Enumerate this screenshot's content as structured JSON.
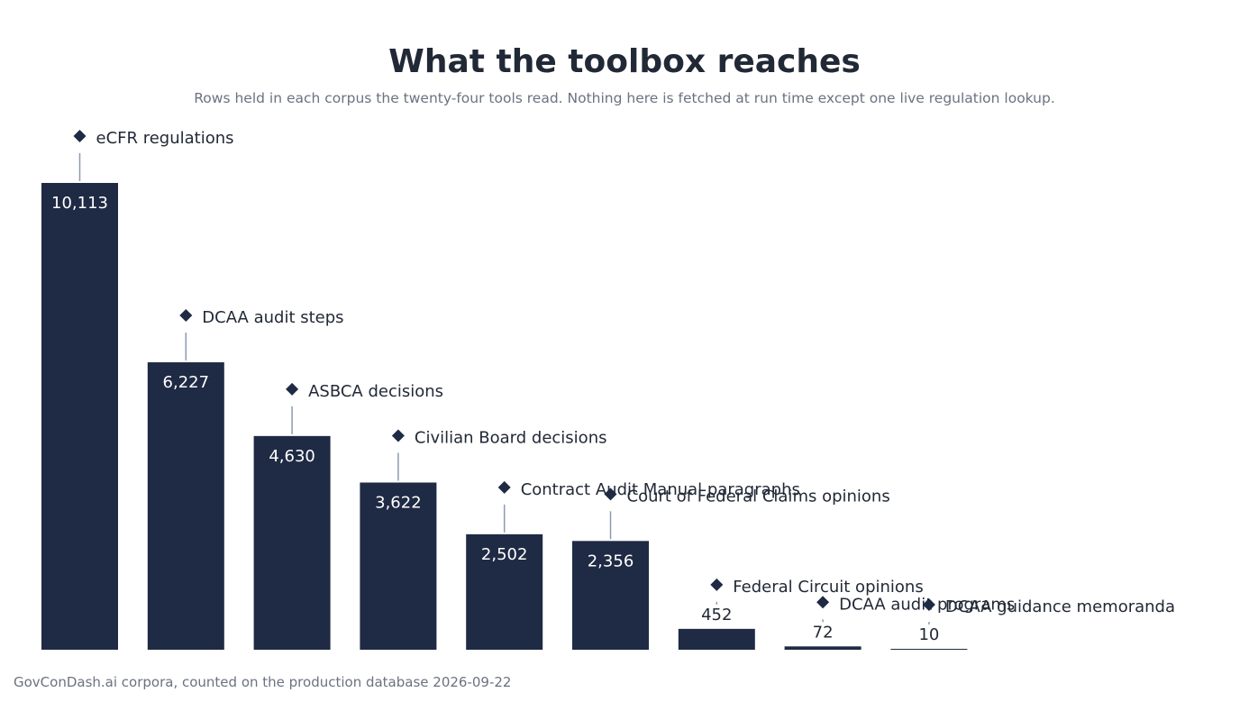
{
  "title": "What the toolbox reaches",
  "subtitle": "Rows held in each corpus the twenty-four tools read. Nothing here is fetched at run time except one live regulation lookup.",
  "footer": "GovConDash.ai corpora, counted on the production database 2026-09-22",
  "colors": {
    "bar": "#1f2a44",
    "leader": "#8a9bb0",
    "text": "#222936",
    "muted": "#6b7280"
  },
  "chart_data": {
    "type": "bar",
    "categories": [
      "eCFR regulations",
      "DCAA audit steps",
      "ASBCA decisions",
      "Civilian Board decisions",
      "Contract Audit Manual paragraphs",
      "Court of Federal Claims opinions",
      "Federal Circuit opinions",
      "DCAA audit programs",
      "DCAA guidance memoranda"
    ],
    "values": [
      10113,
      6227,
      4630,
      3622,
      2502,
      2356,
      452,
      72,
      10
    ],
    "value_labels": [
      "10,113",
      "6,227",
      "4,630",
      "3,622",
      "2,502",
      "2,356",
      "452",
      "72",
      "10"
    ],
    "ylim": [
      0,
      10113
    ],
    "grid": false,
    "legend": "none"
  }
}
